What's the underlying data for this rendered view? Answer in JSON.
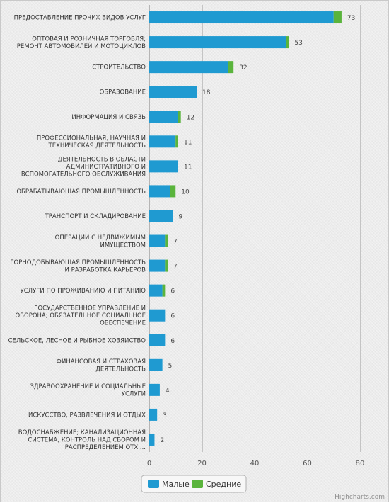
{
  "chart_data": {
    "type": "bar",
    "orientation": "horizontal",
    "stacked": true,
    "categories": [
      [
        "ПРЕДОСТАВЛЕНИЕ ПРОЧИХ ВИДОВ УСЛУГ"
      ],
      [
        "ОПТОВАЯ И РОЗНИЧНАЯ ТОРГОВЛЯ;",
        "РЕМОНТ АВТОМОБИЛЕЙ И МОТОЦИКЛОВ"
      ],
      [
        "СТРОИТЕЛЬСТВО"
      ],
      [
        "ОБРАЗОВАНИЕ"
      ],
      [
        "ИНФОРМАЦИЯ И СВЯЗЬ"
      ],
      [
        "ПРОФЕССИОНАЛЬНАЯ, НАУЧНАЯ И",
        "ТЕХНИЧЕСКАЯ ДЕЯТЕЛЬНОСТЬ"
      ],
      [
        "ДЕЯТЕЛЬНОСТЬ В ОБЛАСТИ",
        "АДМИНИСТРАТИВНОГО И",
        "ВСПОМОГАТЕЛЬНОГО ОБСЛУЖИВАНИЯ"
      ],
      [
        "ОБРАБАТЫВАЮЩАЯ ПРОМЫШЛЕННОСТЬ"
      ],
      [
        "ТРАНСПОРТ И СКЛАДИРОВАНИЕ"
      ],
      [
        "ОПЕРАЦИИ С НЕДВИЖИМЫМ",
        "ИМУЩЕСТВОМ"
      ],
      [
        "ГОРНОДОБЫВАЮЩАЯ ПРОМЫШЛЕННОСТЬ",
        "И РАЗРАБОТКА КАРЬЕРОВ"
      ],
      [
        "УСЛУГИ ПО ПРОЖИВАНИЮ И ПИТАНИЮ"
      ],
      [
        "ГОСУДАРСТВЕННОЕ УПРАВЛЕНИЕ И",
        "ОБОРОНА; ОБЯЗАТЕЛЬНОЕ СОЦИАЛЬНОЕ",
        "ОБЕСПЕЧЕНИЕ"
      ],
      [
        "СЕЛЬСКОЕ, ЛЕСНОЕ И РЫБНОЕ ХОЗЯЙСТВО"
      ],
      [
        "ФИНАНСОВАЯ И СТРАХОВАЯ",
        "ДЕЯТЕЛЬНОСТЬ"
      ],
      [
        "ЗДРАВООХРАНЕНИЕ И СОЦИАЛЬНЫЕ",
        "УСЛУГИ"
      ],
      [
        "ИСКУССТВО, РАЗВЛЕЧЕНИЯ И ОТДЫХ"
      ],
      [
        "ВОДОСНАБЖЕНИЕ; КАНАЛИЗАЦИОННАЯ",
        "СИСТЕМА, КОНТРОЛЬ НАД СБОРОМ И",
        "РАСПРЕДЕЛЕНИЕМ ОТХ ..."
      ]
    ],
    "series": [
      {
        "name": "Малые",
        "color": "#1f9ad1",
        "values": [
          70,
          52,
          30,
          18,
          11,
          10,
          11,
          8,
          9,
          6,
          6,
          5,
          6,
          6,
          5,
          4,
          3,
          2
        ]
      },
      {
        "name": "Средние",
        "color": "#5ab43c",
        "values": [
          3,
          1,
          2,
          0,
          1,
          1,
          0,
          2,
          0,
          1,
          1,
          1,
          0,
          0,
          0,
          0,
          0,
          0
        ]
      }
    ],
    "totals": [
      73,
      53,
      32,
      18,
      12,
      11,
      11,
      10,
      9,
      7,
      7,
      6,
      6,
      6,
      5,
      4,
      3,
      2
    ],
    "xlim": [
      0,
      80
    ],
    "x_ticks": [
      0,
      20,
      40,
      60,
      80
    ],
    "grid": true,
    "legend_position": "bottom-center",
    "credits": "Highcharts.com"
  }
}
